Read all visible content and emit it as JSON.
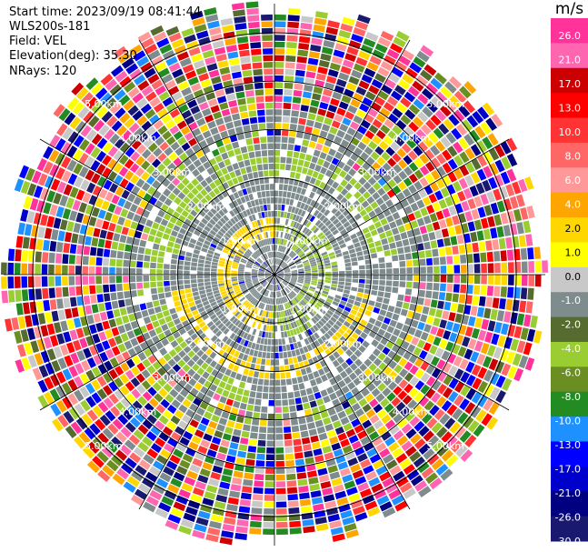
{
  "header": {
    "start_time": "Start time: 2023/09/19 08:41:44",
    "instrument": "WLS200s-181",
    "field": "Field: VEL",
    "elevation": "Elevation(deg): 35.30",
    "nrays": "NRays: 120"
  },
  "colorbar": {
    "unit": "m/s",
    "ticks": [
      "26.0",
      "21.0",
      "17.0",
      "13.0",
      "10.0",
      "8.0",
      "6.0",
      "4.0",
      "2.0",
      "1.0",
      "0.0",
      "-1.0",
      "-2.0",
      "-4.0",
      "-6.0",
      "-8.0",
      "-10.0",
      "-13.0",
      "-17.0",
      "-21.0",
      "-26.0",
      "-30.0"
    ],
    "colors": [
      "#ff3399",
      "#ff66b2",
      "#cc0000",
      "#ff0000",
      "#ff3333",
      "#ff6666",
      "#ff9999",
      "#ffa500",
      "#ffd700",
      "#ffff00",
      "#c8c8c8",
      "#7f8c8d",
      "#556b2f",
      "#9acd32",
      "#6b8e23",
      "#228b22",
      "#1e90ff",
      "#0000ff",
      "#0000cd",
      "#000080",
      "#191970"
    ]
  },
  "chart_data": {
    "type": "ppi",
    "field": "VEL",
    "units": "m/s",
    "n_rays": 120,
    "range_rings_km": [
      1.0,
      2.0,
      3.0,
      4.0,
      5.0
    ],
    "ring_labels": [
      "1.00km",
      "2.00km",
      "3.00km",
      "4.00km",
      "5.00km"
    ],
    "max_range_km": 5.6,
    "vmin": -30.0,
    "vmax": 30.0
  }
}
